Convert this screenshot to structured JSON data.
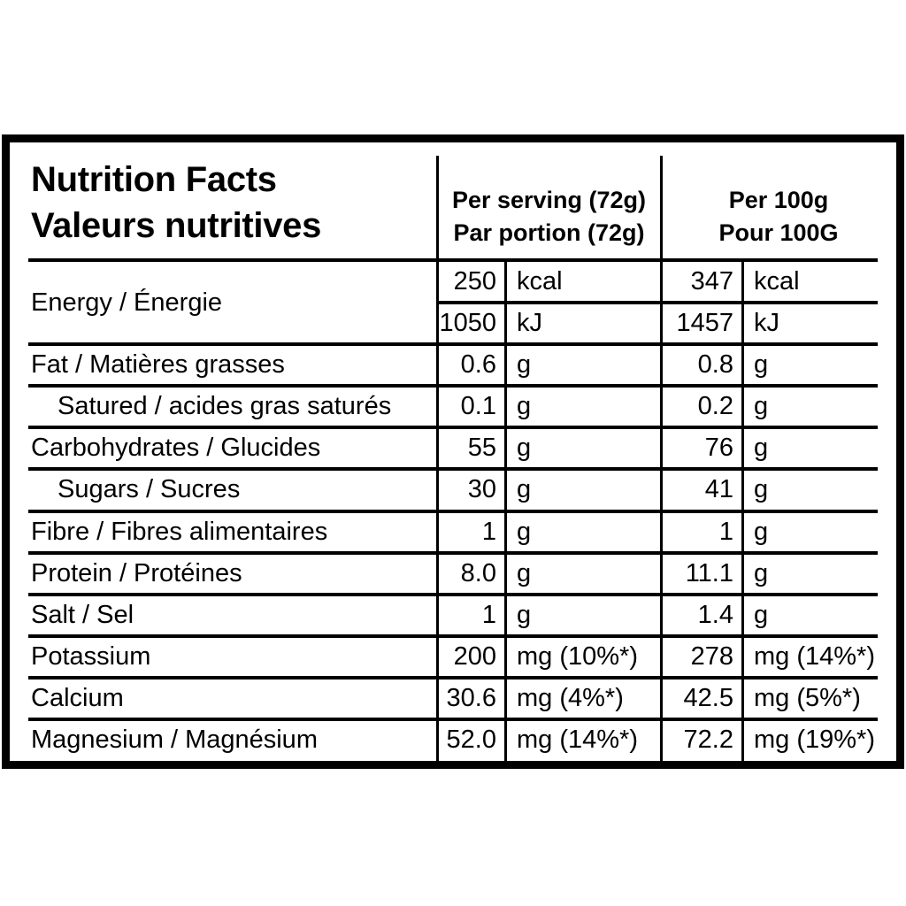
{
  "title": {
    "line1": "Nutrition Facts",
    "line2": "Valeurs nutritives"
  },
  "column_headers": {
    "serving": {
      "line1": "Per serving (72g)",
      "line2": "Par portion (72g)"
    },
    "per100": {
      "line1": "Per 100g",
      "line2": "Pour 100G"
    }
  },
  "rows": [
    {
      "id": "energy",
      "label": "Energy / Énergie",
      "indent": false,
      "subrows": [
        {
          "serving": {
            "amount": "250",
            "unit": "kcal"
          },
          "per100": {
            "amount": "347",
            "unit": "kcal"
          }
        },
        {
          "serving": {
            "amount": "1050",
            "unit": "kJ"
          },
          "per100": {
            "amount": "1457",
            "unit": "kJ"
          }
        }
      ]
    },
    {
      "id": "fat",
      "label": "Fat / Matières grasses",
      "indent": false,
      "subrows": [
        {
          "serving": {
            "amount": "0.6",
            "unit": "g"
          },
          "per100": {
            "amount": "0.8",
            "unit": "g"
          }
        }
      ]
    },
    {
      "id": "saturated",
      "label": "Satured / acides gras saturés",
      "indent": true,
      "subrows": [
        {
          "serving": {
            "amount": "0.1",
            "unit": "g"
          },
          "per100": {
            "amount": "0.2",
            "unit": "g"
          }
        }
      ]
    },
    {
      "id": "carbohydrates",
      "label": "Carbohydrates / Glucides",
      "indent": false,
      "subrows": [
        {
          "serving": {
            "amount": "55",
            "unit": "g"
          },
          "per100": {
            "amount": "76",
            "unit": "g"
          }
        }
      ]
    },
    {
      "id": "sugars",
      "label": "Sugars / Sucres",
      "indent": true,
      "subrows": [
        {
          "serving": {
            "amount": "30",
            "unit": "g"
          },
          "per100": {
            "amount": "41",
            "unit": "g"
          }
        }
      ]
    },
    {
      "id": "fibre",
      "label": "Fibre / Fibres alimentaires",
      "indent": false,
      "subrows": [
        {
          "serving": {
            "amount": "1",
            "unit": "g"
          },
          "per100": {
            "amount": "1",
            "unit": "g"
          }
        }
      ]
    },
    {
      "id": "protein",
      "label": "Protein / Protéines",
      "indent": false,
      "subrows": [
        {
          "serving": {
            "amount": "8.0",
            "unit": "g"
          },
          "per100": {
            "amount": "11.1",
            "unit": "g"
          }
        }
      ]
    },
    {
      "id": "salt",
      "label": "Salt / Sel",
      "indent": false,
      "subrows": [
        {
          "serving": {
            "amount": "1",
            "unit": "g"
          },
          "per100": {
            "amount": "1.4",
            "unit": "g"
          }
        }
      ]
    },
    {
      "id": "potassium",
      "label": "Potassium",
      "indent": false,
      "subrows": [
        {
          "serving": {
            "amount": "200",
            "unit": "mg (10%*)"
          },
          "per100": {
            "amount": "278",
            "unit": "mg (14%*)"
          }
        }
      ]
    },
    {
      "id": "calcium",
      "label": "Calcium",
      "indent": false,
      "subrows": [
        {
          "serving": {
            "amount": "30.6",
            "unit": "mg (4%*)"
          },
          "per100": {
            "amount": "42.5",
            "unit": "mg (5%*)"
          }
        }
      ]
    },
    {
      "id": "magnesium",
      "label": "Magnesium / Magnésium",
      "indent": false,
      "subrows": [
        {
          "serving": {
            "amount": "52.0",
            "unit": "mg (14%*)"
          },
          "per100": {
            "amount": "72.2",
            "unit": "mg (19%*)"
          }
        }
      ]
    }
  ],
  "colors": {
    "ink": "#000000",
    "background": "#ffffff"
  }
}
